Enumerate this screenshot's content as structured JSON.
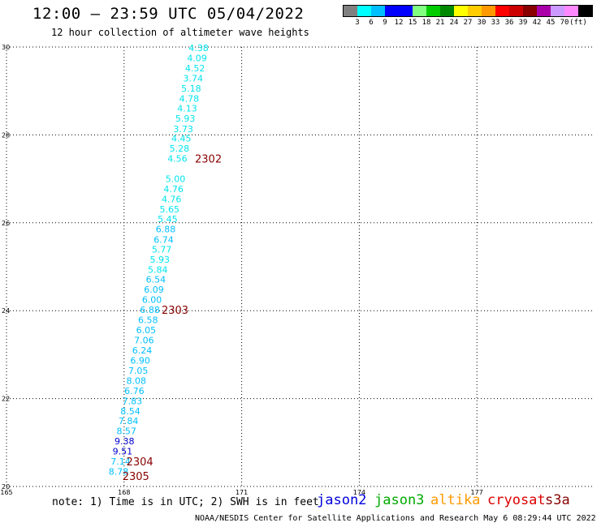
{
  "header": {
    "title": "12:00 – 23:59 UTC 05/04/2022",
    "subtitle": "12 hour collection of altimeter wave heights"
  },
  "legend": {
    "colors": [
      "#808080",
      "#00ffff",
      "#00bfff",
      "#0000ff",
      "#0000ff",
      "#80ff80",
      "#00cc00",
      "#008800",
      "#ffff00",
      "#ffcc00",
      "#ff9900",
      "#ff0000",
      "#cc0000",
      "#880000",
      "#aa00aa",
      "#cc99ff",
      "#ff88ff",
      "#000000"
    ],
    "labels": [
      "3",
      "6",
      "9",
      "12",
      "15",
      "18",
      "21",
      "24",
      "27",
      "30",
      "33",
      "36",
      "39",
      "42",
      "45",
      "70",
      "(ft)"
    ]
  },
  "chart_data": {
    "type": "scatter",
    "xlim": [
      165,
      180
    ],
    "ylim": [
      20,
      30
    ],
    "x_ticks": [
      "165",
      "168",
      "171",
      "174",
      "177"
    ],
    "y_ticks": [
      "20",
      "22",
      "24",
      "26",
      "28",
      "30"
    ],
    "grid": true,
    "points": [
      {
        "lon": 169.9,
        "lat": 29.98,
        "label": "4.38",
        "color": "#00e5ee"
      },
      {
        "lon": 169.86,
        "lat": 29.75,
        "label": "4.09",
        "color": "#00e5ee"
      },
      {
        "lon": 169.81,
        "lat": 29.52,
        "label": "4.52",
        "color": "#00e5ee"
      },
      {
        "lon": 169.76,
        "lat": 29.29,
        "label": "3.74",
        "color": "#00e5ee"
      },
      {
        "lon": 169.71,
        "lat": 29.06,
        "label": "5.18",
        "color": "#00e5ee"
      },
      {
        "lon": 169.66,
        "lat": 28.83,
        "label": "4.78",
        "color": "#00e5ee"
      },
      {
        "lon": 169.61,
        "lat": 28.61,
        "label": "4.13",
        "color": "#00e5ee"
      },
      {
        "lon": 169.56,
        "lat": 28.38,
        "label": "5.93",
        "color": "#00e5ee"
      },
      {
        "lon": 169.51,
        "lat": 28.14,
        "label": "3.73",
        "color": "#00e5ee"
      },
      {
        "lon": 169.46,
        "lat": 27.92,
        "label": "4.45",
        "color": "#00e5ee"
      },
      {
        "lon": 169.41,
        "lat": 27.69,
        "label": "5.28",
        "color": "#00e5ee"
      },
      {
        "lon": 169.36,
        "lat": 27.46,
        "label": "4.56",
        "color": "#00e5ee"
      },
      {
        "lon": 169.31,
        "lat": 27.0,
        "label": "5.00",
        "color": "#00e5ee"
      },
      {
        "lon": 169.26,
        "lat": 26.77,
        "label": "4.76",
        "color": "#00e5ee"
      },
      {
        "lon": 169.21,
        "lat": 26.54,
        "label": "4.76",
        "color": "#00e5ee"
      },
      {
        "lon": 169.16,
        "lat": 26.31,
        "label": "5.65",
        "color": "#00e5ee"
      },
      {
        "lon": 169.11,
        "lat": 26.09,
        "label": "5.45",
        "color": "#00e5ee"
      },
      {
        "lon": 169.06,
        "lat": 25.86,
        "label": "6.88",
        "color": "#00bfff"
      },
      {
        "lon": 169.01,
        "lat": 25.62,
        "label": "6.74",
        "color": "#00bfff"
      },
      {
        "lon": 168.96,
        "lat": 25.4,
        "label": "5.77",
        "color": "#00e5ee"
      },
      {
        "lon": 168.91,
        "lat": 25.17,
        "label": "5.93",
        "color": "#00e5ee"
      },
      {
        "lon": 168.86,
        "lat": 24.94,
        "label": "5.84",
        "color": "#00e5ee"
      },
      {
        "lon": 168.81,
        "lat": 24.71,
        "label": "6.54",
        "color": "#00bfff"
      },
      {
        "lon": 168.76,
        "lat": 24.48,
        "label": "6.09",
        "color": "#00bfff"
      },
      {
        "lon": 168.71,
        "lat": 24.25,
        "label": "6.00",
        "color": "#00bfff"
      },
      {
        "lon": 168.66,
        "lat": 24.02,
        "label": "6.88",
        "color": "#00bfff"
      },
      {
        "lon": 168.61,
        "lat": 23.79,
        "label": "6.58",
        "color": "#00bfff"
      },
      {
        "lon": 168.56,
        "lat": 23.56,
        "label": "6.05",
        "color": "#00bfff"
      },
      {
        "lon": 168.51,
        "lat": 23.33,
        "label": "7.06",
        "color": "#00bfff"
      },
      {
        "lon": 168.46,
        "lat": 23.1,
        "label": "6.24",
        "color": "#00bfff"
      },
      {
        "lon": 168.41,
        "lat": 22.87,
        "label": "6.90",
        "color": "#00bfff"
      },
      {
        "lon": 168.36,
        "lat": 22.64,
        "label": "7.05",
        "color": "#00bfff"
      },
      {
        "lon": 168.31,
        "lat": 22.41,
        "label": "8.08",
        "color": "#00bfff"
      },
      {
        "lon": 168.26,
        "lat": 22.18,
        "label": "6.76",
        "color": "#00bfff"
      },
      {
        "lon": 168.21,
        "lat": 21.95,
        "label": "7.83",
        "color": "#00bfff"
      },
      {
        "lon": 168.16,
        "lat": 21.72,
        "label": "8.54",
        "color": "#00bfff"
      },
      {
        "lon": 168.11,
        "lat": 21.49,
        "label": "7.84",
        "color": "#00bfff"
      },
      {
        "lon": 168.06,
        "lat": 21.26,
        "label": "8.57",
        "color": "#00bfff"
      },
      {
        "lon": 168.01,
        "lat": 21.03,
        "label": "9.38",
        "color": "#0000cd"
      },
      {
        "lon": 167.96,
        "lat": 20.8,
        "label": "9.51",
        "color": "#0000cd"
      },
      {
        "lon": 167.91,
        "lat": 20.57,
        "label": "7.14",
        "color": "#00bfff"
      },
      {
        "lon": 167.86,
        "lat": 20.34,
        "label": "8.78",
        "color": "#00bfff"
      }
    ],
    "pass_labels": [
      {
        "lon": 170.15,
        "lat": 27.46,
        "text": "2302",
        "color": "#880000"
      },
      {
        "lon": 169.3,
        "lat": 24.02,
        "text": "2303",
        "color": "#880000"
      },
      {
        "lon": 168.4,
        "lat": 20.57,
        "text": "2304",
        "color": "#880000"
      },
      {
        "lon": 168.3,
        "lat": 20.24,
        "text": "2305",
        "color": "#880000"
      }
    ]
  },
  "footer": {
    "note": "note: 1) Time is in UTC; 2) SWH is in feet",
    "satellites": [
      {
        "name": "jason2",
        "color": "#0000dd"
      },
      {
        "name": "jason3",
        "color": "#00aa00"
      },
      {
        "name": "altika",
        "color": "#ff9900"
      },
      {
        "name": "cryosat",
        "color": "#dd0000"
      },
      {
        "name": "s3a",
        "color": "#880000"
      }
    ],
    "credit": "NOAA/NESDIS Center for Satellite Applications and Research   May  6 08:29:44 UTC 2022"
  }
}
